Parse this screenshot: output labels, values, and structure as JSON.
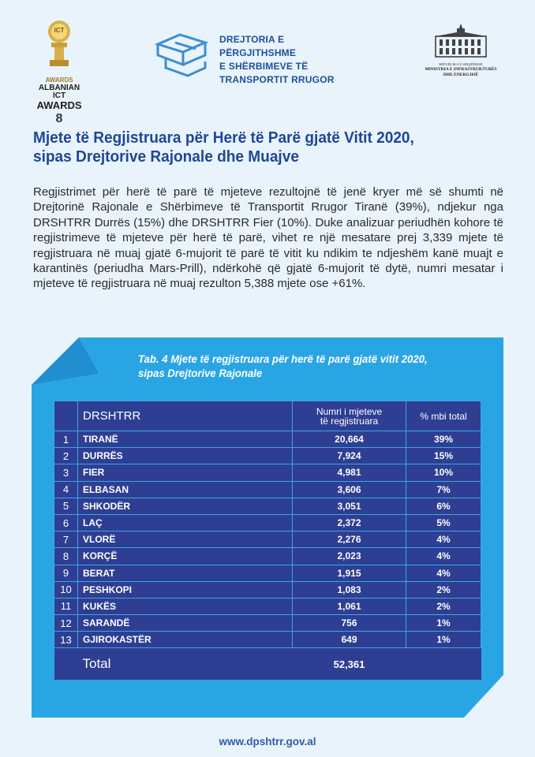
{
  "header": {
    "award": {
      "line1": "ICT",
      "line2": "AWARDS",
      "line3": "ALBANIAN ICT",
      "line4": "AWARDS",
      "mark": "8"
    },
    "brand": {
      "line1": "DREJTORIA E PËRGJITHSHME",
      "line2": "E SHËRBIMEVE TË",
      "line3": "TRANSPORTIT RRUGOR"
    },
    "ministry": {
      "line1": "REPUBLIKA E SHQIPËRISË",
      "line2": "MINISTRIA E INFRASTRUKTURËS",
      "line3": "DHE ENERGJISË"
    }
  },
  "title": {
    "line1": "Mjete të Regjistruara për Herë të Parë gjatë Vitit 2020,",
    "line2": "sipas Drejtorive Rajonale dhe Muajve"
  },
  "paragraph": "Regjistrimet për herë të parë të mjeteve rezultojnë të jenë kryer më së shumti në Drejtorinë Rajonale e Shërbimeve të Transportit Rrugor Tiranë (39%), ndjekur nga DRSHTRR Durrës (15%) dhe DRSHTRR Fier (10%). Duke analizuar periudhën kohore të regjistrimeve të mjeteve për herë të parë, vihet re një mesatare prej 3,339 mjete të regjistruara në muaj gjatë 6-mujorit të parë të vitit ku ndikim te ndjeshëm kanë muajt e karantinës (periudha Mars-Prill), ndërkohë që gjatë 6-mujorit të dytë, numri mesatar i mjeteve të regjistruara në muaj rezulton 5,388 mjete ose +61%.",
  "table": {
    "caption_line1": "Tab. 4 Mjete të regjistruara për herë të parë gjatë vitit 2020,",
    "caption_line2": "sipas Drejtorive Rajonale",
    "headers": {
      "name": "DRSHTRR",
      "value_line1": "Numri i mjeteve",
      "value_line2": "të regjistruara",
      "pct": "% mbi total"
    },
    "rows": [
      {
        "num": "1",
        "name": "TIRANË",
        "value": "20,664",
        "pct": "39%"
      },
      {
        "num": "2",
        "name": "DURRËS",
        "value": "7,924",
        "pct": "15%"
      },
      {
        "num": "3",
        "name": "FIER",
        "value": "4,981",
        "pct": "10%"
      },
      {
        "num": "4",
        "name": "ELBASAN",
        "value": "3,606",
        "pct": "7%"
      },
      {
        "num": "5",
        "name": "SHKODËR",
        "value": "3,051",
        "pct": "6%"
      },
      {
        "num": "6",
        "name": "LAÇ",
        "value": "2,372",
        "pct": "5%"
      },
      {
        "num": "7",
        "name": "VLORË",
        "value": "2,276",
        "pct": "4%"
      },
      {
        "num": "8",
        "name": "KORÇË",
        "value": "2,023",
        "pct": "4%"
      },
      {
        "num": "9",
        "name": "BERAT",
        "value": "1,915",
        "pct": "4%"
      },
      {
        "num": "10",
        "name": "PESHKOPI",
        "value": "1,083",
        "pct": "2%"
      },
      {
        "num": "11",
        "name": "KUKËS",
        "value": "1,061",
        "pct": "2%"
      },
      {
        "num": "12",
        "name": "SARANDË",
        "value": "756",
        "pct": "1%"
      },
      {
        "num": "13",
        "name": "GJIROKASTËR",
        "value": "649",
        "pct": "1%"
      }
    ],
    "total": {
      "label": "Total",
      "value": "52,361"
    }
  },
  "footer": {
    "url": "www.dpshtrr.gov.al"
  },
  "colors": {
    "title": "#1f4797",
    "panel": "#2aa5e4",
    "table": "#2e3e93",
    "brand": "#1e4f9c",
    "gold": "#c9a13b"
  }
}
